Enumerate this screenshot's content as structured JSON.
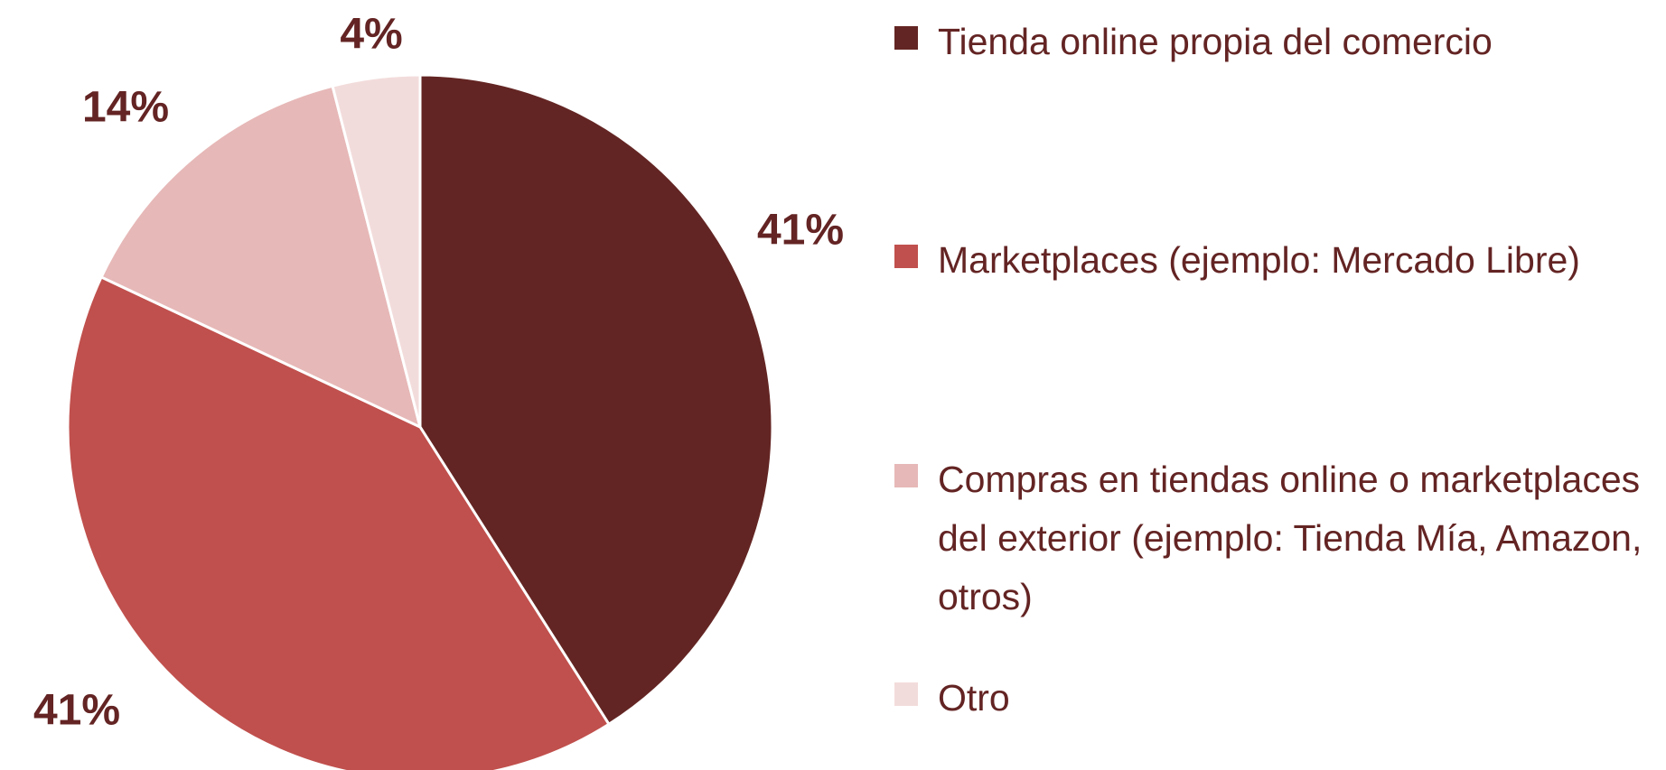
{
  "chart_data": {
    "type": "pie",
    "categories": [
      "Tienda online propia del comercio",
      "Marketplaces (ejemplo: Mercado Libre)",
      "Compras en tiendas online o marketplaces del exterior (ejemplo: Tienda Mía, Amazon, otros)",
      "Otro"
    ],
    "values": [
      41,
      41,
      14,
      4
    ],
    "value_labels": [
      "41%",
      "41%",
      "14%",
      "4%"
    ],
    "colors": [
      "#632523",
      "#c0504d",
      "#e6b8b7",
      "#f2dcdb"
    ],
    "legend": "right"
  }
}
